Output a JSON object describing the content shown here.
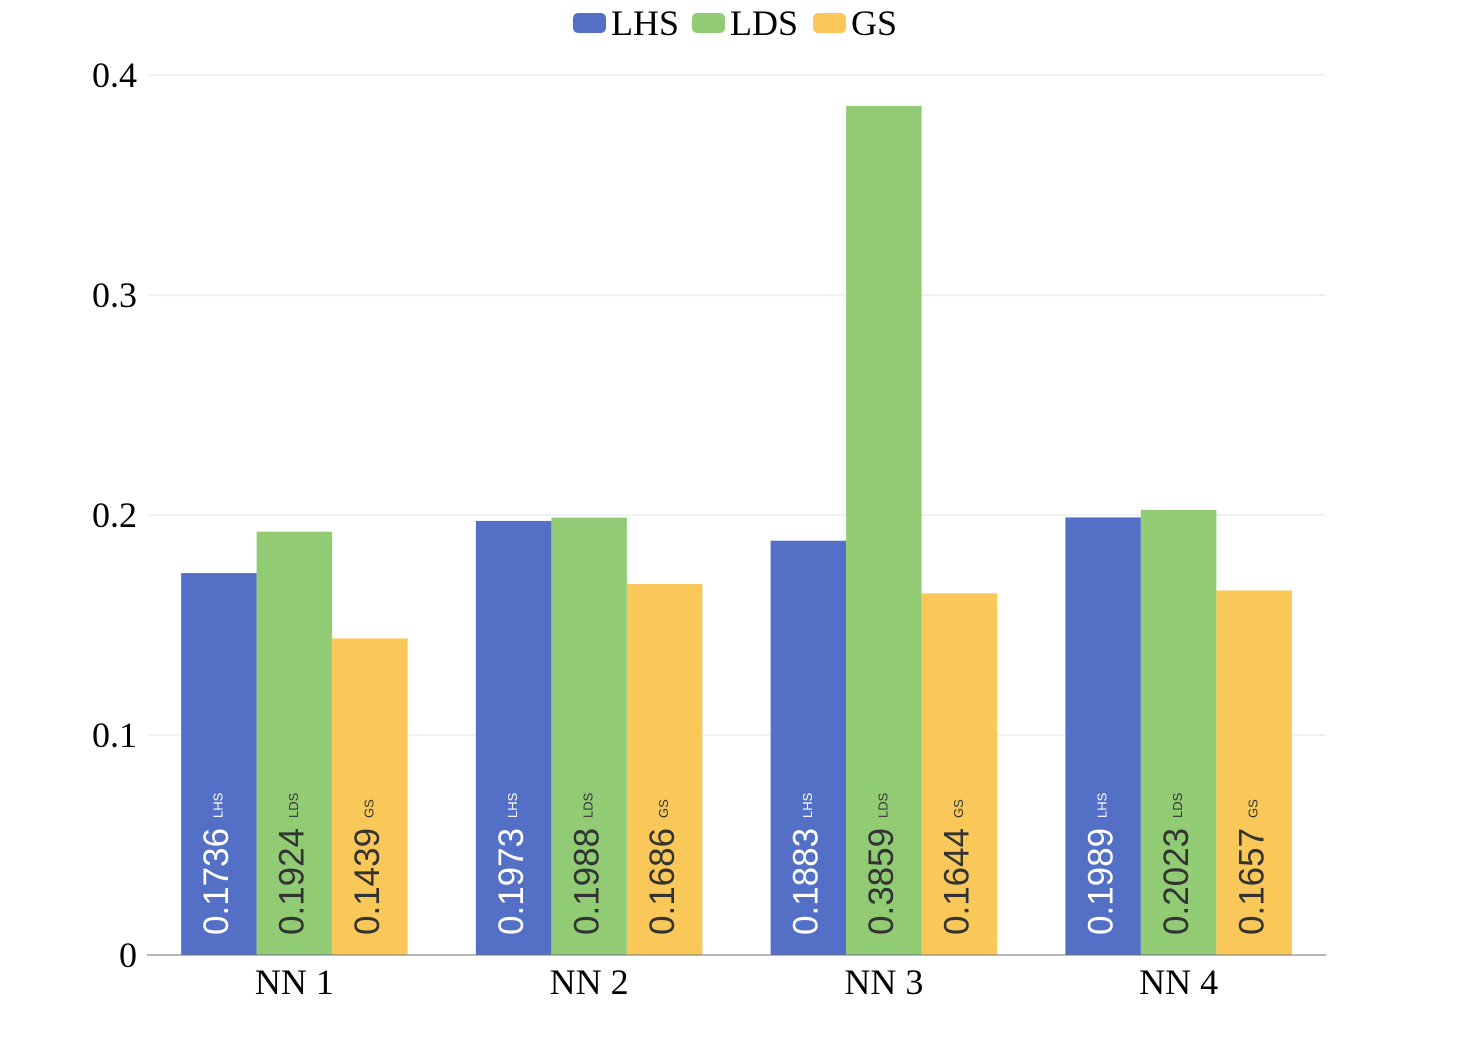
{
  "chart_data": {
    "type": "bar",
    "title": "",
    "xlabel": "",
    "ylabel": "",
    "categories": [
      "NN 1",
      "NN 2",
      "NN 3",
      "NN 4"
    ],
    "ylim": [
      0,
      0.4
    ],
    "yticks": [
      "0",
      "0.1",
      "0.2",
      "0.3",
      "0.4"
    ],
    "grid": true,
    "legend_position": "top-center",
    "series": [
      {
        "name": "LHS",
        "color": "#5470c6",
        "label_color": "#ffffff",
        "values": [
          0.1736,
          0.1973,
          0.1883,
          0.1989
        ],
        "labels": [
          "0.1736",
          "0.1973",
          "0.1883",
          "0.1989"
        ]
      },
      {
        "name": "LDS",
        "color": "#91cc75",
        "label_color": "#333333",
        "values": [
          0.1924,
          0.1988,
          0.3859,
          0.2023
        ],
        "labels": [
          "0.1924",
          "0.1988",
          "0.3859",
          "0.2023"
        ]
      },
      {
        "name": "GS",
        "color": "#fac858",
        "label_color": "#333333",
        "values": [
          0.1439,
          0.1686,
          0.1644,
          0.1657
        ],
        "labels": [
          "0.1439",
          "0.1686",
          "0.1644",
          "0.1657"
        ]
      }
    ]
  }
}
